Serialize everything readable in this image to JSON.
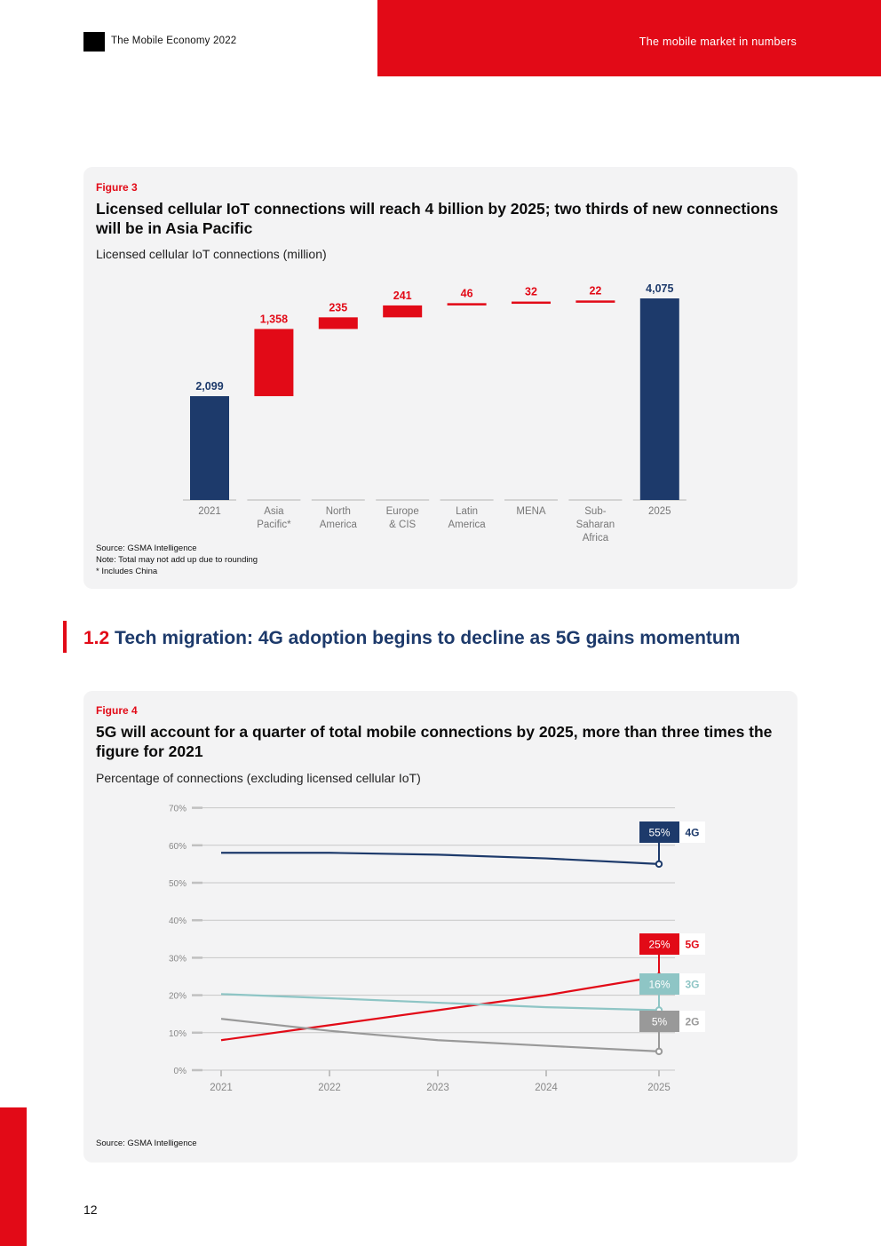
{
  "header": {
    "doc_title": "The Mobile Economy 2022",
    "section": "The mobile market in numbers"
  },
  "figure3": {
    "label": "Figure 3",
    "title": "Licensed cellular IoT connections will reach 4 billion by 2025; two thirds of new connections will be in Asia Pacific",
    "subtitle": "Licensed cellular IoT connections (million)",
    "notes": [
      "Source: GSMA Intelligence",
      "Note: Total may not add up due to rounding",
      "* Includes China"
    ]
  },
  "section": {
    "number": "1.2",
    "title": "Tech migration: 4G adoption begins to decline as 5G gains momentum"
  },
  "figure4": {
    "label": "Figure 4",
    "title": "5G will account for a quarter of total mobile connections by 2025, more than three times the figure for 2021",
    "subtitle": "Percentage of connections (excluding licensed cellular IoT)",
    "notes": [
      "Source: GSMA Intelligence"
    ]
  },
  "page_number": "12",
  "colors": {
    "red": "#e20a17",
    "navy": "#1d3a6b",
    "teal": "#8ec5c5",
    "grey": "#999999"
  },
  "chart_data": [
    {
      "type": "bar",
      "subtype": "waterfall",
      "title": "Licensed cellular IoT connections (million)",
      "categories": [
        [
          "2021"
        ],
        [
          "Asia",
          "Pacific*"
        ],
        [
          "North",
          "America"
        ],
        [
          "Europe",
          "& CIS"
        ],
        [
          "Latin",
          "America"
        ],
        [
          "MENA"
        ],
        [
          "Sub-",
          "Saharan",
          "Africa"
        ],
        [
          "2025"
        ]
      ],
      "values": [
        2099,
        1358,
        235,
        241,
        46,
        32,
        22,
        4075
      ],
      "labels": [
        "2,099",
        "1,358",
        "235",
        "241",
        "46",
        "32",
        "22",
        "4,075"
      ],
      "kinds": [
        "total",
        "increment",
        "increment",
        "increment",
        "increment",
        "increment",
        "increment",
        "total"
      ],
      "ylim": [
        0,
        4200
      ]
    },
    {
      "type": "line",
      "title": "Percentage of connections (excluding licensed cellular IoT)",
      "x": [
        "2021",
        "2022",
        "2023",
        "2024",
        "2025"
      ],
      "ylim": [
        0,
        70
      ],
      "yticks": [
        "0%",
        "10%",
        "20%",
        "30%",
        "40%",
        "50%",
        "60%",
        "70%"
      ],
      "series": [
        {
          "name": "4G",
          "values": [
            58,
            58,
            57.5,
            56.5,
            55
          ],
          "end_label": "55%"
        },
        {
          "name": "5G",
          "values": [
            8,
            12,
            16,
            20,
            25
          ],
          "end_label": "25%"
        },
        {
          "name": "3G",
          "values": [
            20.3,
            19.2,
            18,
            16.8,
            16
          ],
          "end_label": "16%"
        },
        {
          "name": "2G",
          "values": [
            13.7,
            10.5,
            8,
            6.5,
            5
          ],
          "end_label": "5%"
        }
      ]
    }
  ]
}
